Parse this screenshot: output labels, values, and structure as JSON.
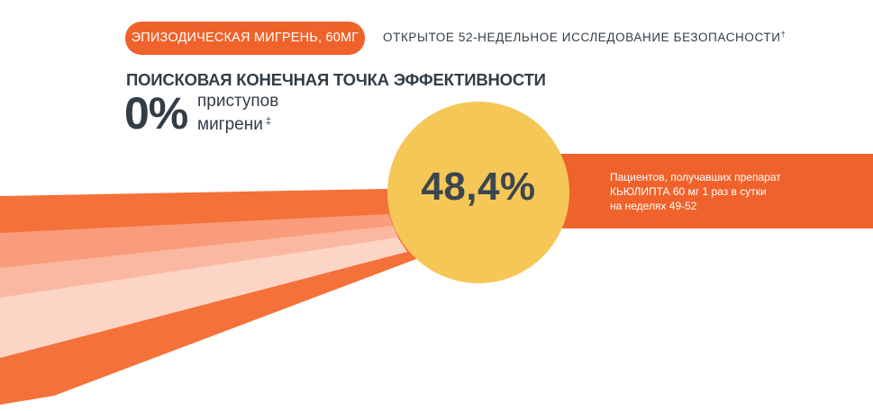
{
  "colors": {
    "accent_orange": "#f0622b",
    "ray_orange": "#f5713a",
    "ray_mid": "#f99c7b",
    "ray_light": "#fbb8a0",
    "ray_pale": "#fdd5c7",
    "circle_yellow": "#f5c756",
    "text_dark": "#333d46"
  },
  "header": {
    "badge": "ЭПИЗОДИЧЕСКАЯ МИГРЕНЬ, 60МГ",
    "study": "ОТКРЫТОЕ 52-НЕДЕЛЬНОЕ ИССЛЕДОВАНИЕ БЕЗОПАСНОСТИ",
    "study_mark": "†"
  },
  "endpoint": {
    "title": "ПОИСКОВАЯ КОНЕЧНАЯ ТОЧКА ЭФФЕКТИВНОСТИ",
    "value": "0%",
    "label_line1": "приступов",
    "label_line2": "мигрени",
    "label_mark": "‡"
  },
  "result": {
    "value": "48,4%",
    "description_line1": "Пациентов, получавших препарат",
    "description_line2": "КЬЮЛИПТА 60 мг 1 раз в сутки",
    "description_line3": "на неделях 49-52"
  }
}
